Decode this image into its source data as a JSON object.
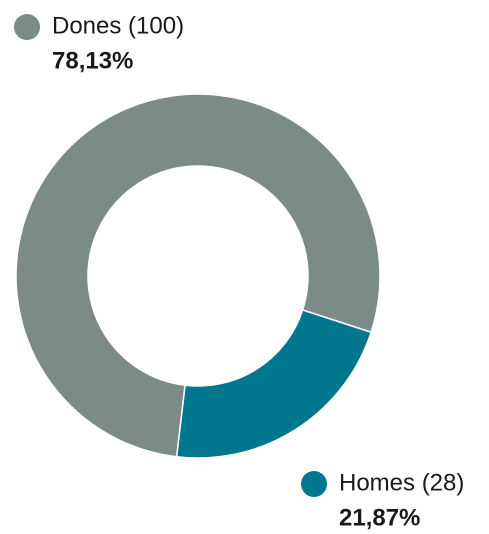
{
  "chart_data": {
    "type": "pie",
    "categories": [
      "Dones (100)",
      "Homes (28)"
    ],
    "values": [
      78.13,
      21.87
    ],
    "value_labels": [
      "78,13%",
      "21,87%"
    ],
    "colors": [
      "#7b8b88",
      "#00768f"
    ]
  }
}
